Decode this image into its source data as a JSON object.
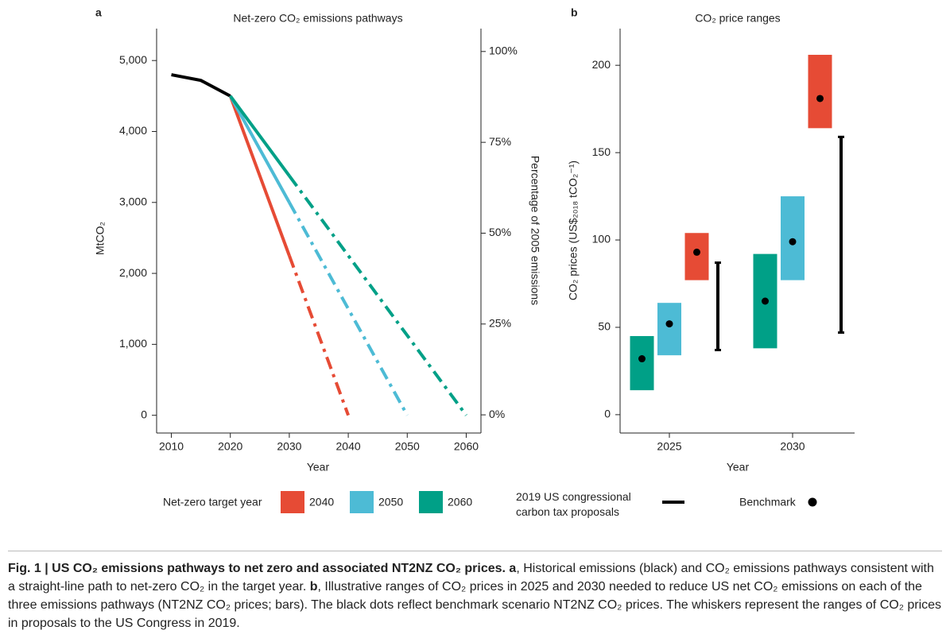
{
  "chart_data": [
    {
      "type": "line",
      "panel": "a",
      "title": "Net-zero CO₂ emissions pathways",
      "x": [
        2010,
        2015,
        2020,
        2030,
        2040,
        2050,
        2060
      ],
      "xlim": [
        2007.5,
        2062.5
      ],
      "xticks": [
        2010,
        2020,
        2030,
        2040,
        2050,
        2060
      ],
      "ylim": [
        -250,
        5450
      ],
      "yticks": [
        0,
        {
          "value": 1000,
          "label": "1,000"
        },
        {
          "value": 2000,
          "label": "2,000"
        },
        {
          "value": 3000,
          "label": "3,000"
        },
        {
          "value": 4000,
          "label": "4,000"
        },
        {
          "value": 5000,
          "label": "5,000"
        }
      ],
      "y2lim": [
        -5,
        106.3
      ],
      "y2ticks": [
        {
          "value": 0,
          "label": "0%"
        },
        {
          "value": 25,
          "label": "25%"
        },
        {
          "value": 50,
          "label": "50%"
        },
        {
          "value": 75,
          "label": "75%"
        },
        {
          "value": 100,
          "label": "100%"
        }
      ],
      "xlabel": "Year",
      "ylabel": "MtCO₂",
      "y2label": "Percentage of 2005 emissions",
      "legend_title": "Net-zero target year",
      "series": [
        {
          "color": "#000000",
          "values": [
            4800,
            4720,
            4500,
            null,
            null,
            null,
            null
          ]
        },
        {
          "name": "2040",
          "color": "#e64b35",
          "dashed_from": 2030,
          "values": [
            null,
            null,
            4500,
            2250,
            0,
            null,
            null
          ]
        },
        {
          "name": "2050",
          "color": "#4dbbd5",
          "dashed_from": 2030,
          "values": [
            null,
            null,
            4500,
            3000,
            1500,
            0,
            null
          ]
        },
        {
          "name": "2060",
          "color": "#00a087",
          "dashed_from": 2030,
          "values": [
            null,
            null,
            4500,
            3375,
            2250,
            1125,
            0
          ]
        }
      ]
    },
    {
      "type": "range",
      "panel": "b",
      "title": "CO₂ price ranges",
      "categories": [
        "2025",
        "2030"
      ],
      "ylim": [
        -10.5,
        221
      ],
      "yticks": [
        0,
        50,
        100,
        150,
        200
      ],
      "xlabel": "Year",
      "ylabel": "CO₂ prices (US$₂₀₁₈ tCO₂⁻¹)",
      "series": [
        {
          "color": "#00a087",
          "low": [
            14,
            38
          ],
          "high": [
            45,
            92
          ],
          "benchmark": [
            32,
            65
          ]
        },
        {
          "color": "#4dbbd5",
          "low": [
            34,
            77
          ],
          "high": [
            64,
            125
          ],
          "benchmark": [
            52,
            99
          ]
        },
        {
          "color": "#e64b35",
          "low": [
            77,
            164
          ],
          "high": [
            104,
            206
          ],
          "benchmark": [
            93,
            181
          ]
        }
      ],
      "whisker": {
        "name": "2019 US congressional carbon tax proposals",
        "color": "#000000",
        "low": [
          37,
          47
        ],
        "high": [
          87,
          159
        ]
      },
      "benchmark_legend": "Benchmark",
      "benchmark_color": "#000000"
    }
  ],
  "caption": {
    "title": "Fig. 1 | US CO₂ emissions pathways to net zero and associated NT2NZ CO₂ prices.",
    "parts": [
      {
        "label": "a",
        "text": ", Historical emissions (black) and CO₂ emissions pathways consistent with a straight-line path to net-zero CO₂ in the target year."
      },
      {
        "label": "b",
        "text": ", Illustrative ranges of CO₂ prices in 2025 and 2030 needed to reduce US net CO₂ emissions on each of the three emissions pathways (NT2NZ CO₂ prices; bars). The black dots reflect benchmark scenario NT2NZ CO₂ prices. The whiskers represent the ranges of CO₂ prices in proposals to the US Congress in 2019."
      }
    ]
  }
}
